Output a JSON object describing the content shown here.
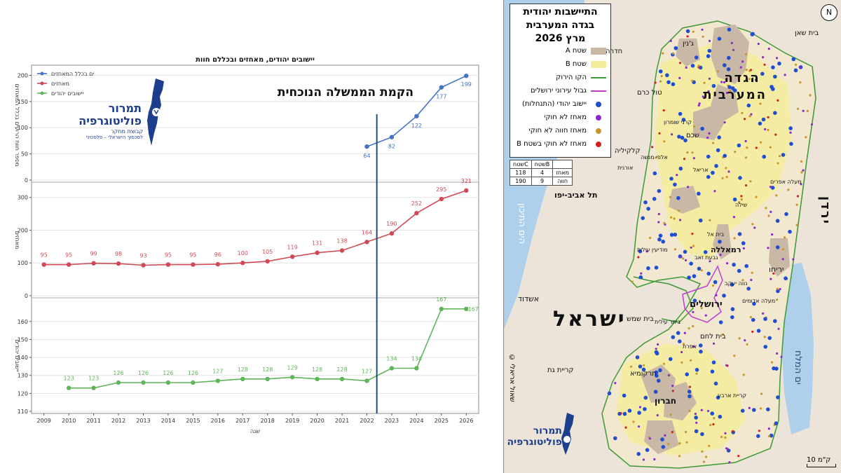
{
  "chart_data": {
    "type": "line",
    "title": "יישובים יהודים, מאחזים ובכללם חוות",
    "xlabel": "שנה",
    "annotation": "הקמת הממשלה הנוכחית",
    "annotation_x": 2022.4,
    "x": [
      2009,
      2010,
      2011,
      2012,
      2013,
      2014,
      2015,
      2016,
      2017,
      2018,
      2019,
      2020,
      2021,
      2022,
      2023,
      2024,
      2025,
      2026
    ],
    "panels": [
      {
        "name": "מספר חוות הרועים בכלל המאחזים",
        "legend": "ים בכלל המאחזים",
        "ylabel": "מספר חוות הרועים בכלל המאחזים",
        "color": "#4472c4",
        "ylim": [
          0,
          210
        ],
        "ticks": [
          0,
          50,
          100,
          150,
          200
        ],
        "points": [
          [
            2022,
            64
          ],
          [
            2023,
            82
          ],
          [
            2024,
            122
          ],
          [
            2025,
            177
          ],
          [
            2026,
            199
          ]
        ]
      },
      {
        "name": "מאחזים",
        "legend": "מאחזים",
        "ylabel": "מאחזים",
        "color": "#d04a55",
        "ylim": [
          0,
          340
        ],
        "ticks": [
          0,
          100,
          200,
          300
        ],
        "points": [
          [
            2009,
            95
          ],
          [
            2010,
            95
          ],
          [
            2011,
            99
          ],
          [
            2012,
            98
          ],
          [
            2013,
            93
          ],
          [
            2014,
            95
          ],
          [
            2015,
            95
          ],
          [
            2016,
            96
          ],
          [
            2017,
            100
          ],
          [
            2018,
            105
          ],
          [
            2019,
            119
          ],
          [
            2020,
            131
          ],
          [
            2021,
            138
          ],
          [
            2022,
            164
          ],
          [
            2023,
            190
          ],
          [
            2024,
            252
          ],
          [
            2025,
            295
          ],
          [
            2026,
            321
          ]
        ]
      },
      {
        "name": "יישובים יהודים",
        "legend": "יישובים יהודים",
        "ylabel": "יישובים יהודים",
        "color": "#5fb55a",
        "ylim": [
          110,
          172
        ],
        "ticks": [
          110,
          120,
          130,
          140,
          150,
          160
        ],
        "points": [
          [
            2010,
            123
          ],
          [
            2011,
            123
          ],
          [
            2012,
            126
          ],
          [
            2013,
            126
          ],
          [
            2014,
            126
          ],
          [
            2015,
            126
          ],
          [
            2016,
            127
          ],
          [
            2017,
            128
          ],
          [
            2018,
            128
          ],
          [
            2019,
            129
          ],
          [
            2020,
            128
          ],
          [
            2021,
            128
          ],
          [
            2022,
            127
          ],
          [
            2023,
            134
          ],
          [
            2024,
            134
          ],
          [
            2025,
            167
          ],
          [
            2026,
            167
          ]
        ]
      }
    ]
  },
  "chart_logo": {
    "line1": "תמרור",
    "line2": "פוליטוגרפיה",
    "line3": "קבוצת מחקר",
    "line4": "לסכסוך הישראלי – פלסטיני"
  },
  "map": {
    "title_line1": "התיישבות יהודית",
    "title_line2": "בגדה המערבית",
    "title_line3": "מרץ 2026",
    "legend": [
      {
        "label": "שטח A",
        "color": "#c9b8a6",
        "kind": "area"
      },
      {
        "label": "שטח B",
        "color": "#f3ec9a",
        "kind": "area"
      },
      {
        "label": "הקו הירוק",
        "color": "#3d9a36",
        "kind": "line"
      },
      {
        "label": "גבול עירוני ירושלים",
        "color": "#c040d0",
        "kind": "line"
      },
      {
        "label": "יישוב יהודי (התנחלות)",
        "color": "#1f4fd0",
        "kind": "dot"
      },
      {
        "label": "מאחז לא חוקי",
        "color": "#8a2bc8",
        "kind": "dot"
      },
      {
        "label": "מאחז חווה לא חוקי",
        "color": "#c8962e",
        "kind": "dot"
      },
      {
        "label": "מאחז לא חוקי בשטח B",
        "color": "#d02020",
        "kind": "dot"
      }
    ],
    "table": {
      "headers": [
        "שטחC",
        "שטחB",
        ""
      ],
      "rows": [
        [
          "118",
          "4",
          "מאחז"
        ],
        [
          "190",
          "9",
          "חווה"
        ]
      ]
    },
    "labels": {
      "west_bank": "הגדה המערבית",
      "israel": "ישראל",
      "jordan": "ירדן",
      "med_sea": "הים התיכון",
      "dead_sea": "ים המלח",
      "jerusalem": "ירושלים",
      "ramallah": "רמאללה",
      "hebron": "חברון",
      "jericho": "יריחו",
      "tel_aviv": "תל אביב-יפו",
      "ashdod": "אשדוד",
      "beit_shemesh": "בית שמש",
      "kiryat_gat": "קריית גת",
      "hadera": "חדרה",
      "beit_shean": "בית שאן",
      "jenin": "ג'נין",
      "tulkarm": "טול כרם",
      "qalqilya": "קלקיליה",
      "nablus": "שכם",
      "bethlehem": "בית לחם",
      "tarqumiya": "תרקומיא",
      "karnei_shomron": "קרני שומרון",
      "alfei_menashe": "אלפי מנשה",
      "ariel": "אריאל",
      "oranit": "אורנית",
      "shilo": "שילה",
      "maale_efraim": "מעלה אפרים",
      "beit_el": "בית אל",
      "modiin_illit": "מודיעין עילית",
      "givat_zeev": "גבעת זאב",
      "maale_adumim": "מעלה אדומים",
      "beitar_illit": "ביתר עילית",
      "efrat": "אפרת",
      "kiryat_arba": "קריית ארבע",
      "neve_yaakov": "נווה יעקב",
      "scale": "10 ק\"מ",
      "north": "N",
      "credit": "© שאול אריאלי"
    },
    "logo_line1": "תמרור",
    "logo_line2": "פוליטוגרפיה"
  }
}
